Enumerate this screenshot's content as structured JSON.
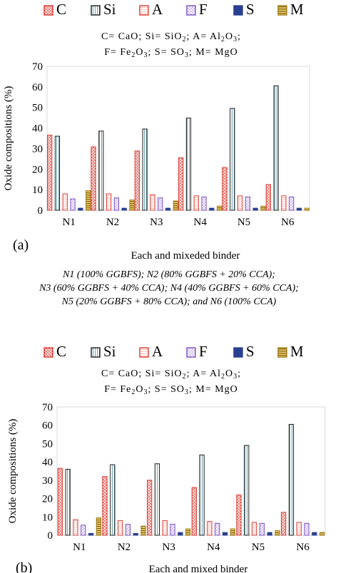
{
  "legend_items": [
    {
      "key": "C",
      "pattern": "dots",
      "color": "#d9342b"
    },
    {
      "key": "Si",
      "pattern": "vlines",
      "color": "#1f1f1f"
    },
    {
      "key": "A",
      "pattern": "hlines",
      "color": "#e03a30"
    },
    {
      "key": "F",
      "pattern": "cross",
      "color": "#7b4fc6"
    },
    {
      "key": "S",
      "pattern": "solid",
      "color": "#2a3f8f"
    },
    {
      "key": "M",
      "pattern": "hstripes",
      "color": "#a07a14"
    }
  ],
  "formula_lines": [
    "C= CaO; Si= SiO2; A= Al2O3;",
    "F= Fe2O3; S= SO3; M= MgO"
  ],
  "caption_lines": [
    "N1 (100% GGBFS); N2 (80% GGBFS + 20% CCA);",
    "N3 (60% GGBFS + 40% CCA); N4 (40% GGBFS + 60% CCA);",
    "N5 (20% GGBFS + 80% CCA); and N6 (100% CCA)"
  ],
  "chart_data": [
    {
      "type": "bar",
      "panel": "(a)",
      "xlabel": "Each and mixeded binder",
      "ylabel": "Oxide compositions (%)",
      "ylim": [
        0,
        70
      ],
      "yticks": [
        0,
        10,
        20,
        30,
        40,
        50,
        60,
        70
      ],
      "grid": false,
      "legend": "top",
      "categories": [
        "N1",
        "N2",
        "N3",
        "N4",
        "N5",
        "N6"
      ],
      "series": [
        {
          "name": "C",
          "values": [
            36.5,
            30.8,
            28.8,
            25.5,
            20.8,
            12.5
          ]
        },
        {
          "name": "Si",
          "values": [
            36.0,
            38.5,
            39.5,
            44.8,
            49.5,
            60.5
          ]
        },
        {
          "name": "A",
          "values": [
            8.0,
            8.0,
            7.5,
            7.0,
            7.0,
            7.0
          ]
        },
        {
          "name": "F",
          "values": [
            5.5,
            6.0,
            6.0,
            6.5,
            6.5,
            6.5
          ]
        },
        {
          "name": "S",
          "values": [
            1.0,
            1.0,
            1.0,
            1.0,
            1.0,
            1.0
          ]
        },
        {
          "name": "M",
          "values": [
            9.5,
            5.0,
            4.5,
            2.0,
            2.0,
            1.0
          ]
        }
      ]
    },
    {
      "type": "bar",
      "panel": "(b)",
      "xlabel": "Each and mixed binder",
      "ylabel": "Oxide compositions (%)",
      "ylim": [
        0,
        70
      ],
      "yticks": [
        0,
        10,
        20,
        30,
        40,
        50,
        60,
        70
      ],
      "grid": false,
      "legend": "top",
      "categories": [
        "N1",
        "N2",
        "N3",
        "N4",
        "N5",
        "N6"
      ],
      "series": [
        {
          "name": "C",
          "values": [
            36.5,
            32.0,
            30.0,
            26.0,
            22.0,
            12.5
          ]
        },
        {
          "name": "Si",
          "values": [
            36.0,
            38.5,
            39.0,
            43.8,
            49.0,
            60.5
          ]
        },
        {
          "name": "A",
          "values": [
            8.5,
            8.0,
            8.0,
            7.5,
            7.0,
            7.0
          ]
        },
        {
          "name": "F",
          "values": [
            5.5,
            6.0,
            6.0,
            6.5,
            6.5,
            6.5
          ]
        },
        {
          "name": "S",
          "values": [
            1.0,
            1.0,
            1.5,
            1.5,
            1.5,
            1.5
          ]
        },
        {
          "name": "M",
          "values": [
            9.5,
            5.0,
            3.5,
            3.5,
            2.5,
            1.5
          ]
        }
      ]
    }
  ]
}
